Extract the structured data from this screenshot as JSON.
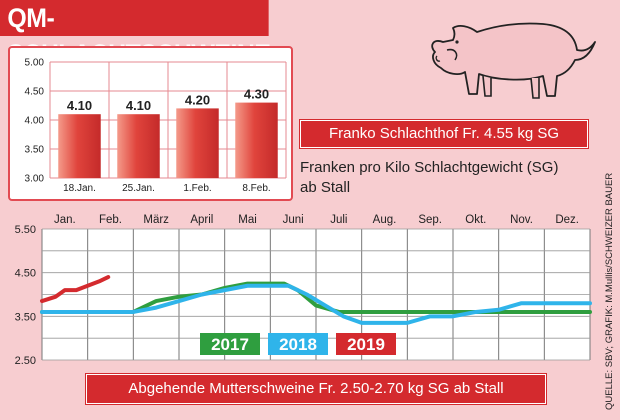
{
  "title": "QM-SCHLACHTSCHWEINE",
  "franko_label": "Franko Schlachthof Fr. 4.55 kg SG",
  "subtitle_line1": "Franken pro Kilo Schlachtgewicht (SG)",
  "subtitle_line2": "ab Stall",
  "mutter_label": "Abgehende Mutterschweine Fr. 2.50-2.70 kg SG ab Stall",
  "credit": "QUELLE: SBV; GRAFIK: M.Mullis/SCHWEIZER BAUER",
  "colors": {
    "red": "#d42a2e",
    "green": "#2f9e3f",
    "blue": "#2fb4ea",
    "pink": "#f7cdd0"
  },
  "chart_data": [
    {
      "type": "bar",
      "categories": [
        "18.Jan.",
        "25.Jan.",
        "1.Feb.",
        "8.Feb."
      ],
      "values": [
        4.1,
        4.1,
        4.2,
        4.3
      ],
      "value_labels": [
        "4.10",
        "4.10",
        "4.20",
        "4.30"
      ],
      "y_ticks": [
        "5.00",
        "4.50",
        "4.00",
        "3.50",
        "3.00"
      ],
      "ylim": [
        3.0,
        5.0
      ],
      "grid": true
    },
    {
      "type": "line",
      "categories": [
        "Jan.",
        "Feb.",
        "März",
        "April",
        "Mai",
        "Juni",
        "Juli",
        "Aug.",
        "Sep.",
        "Okt.",
        "Nov.",
        "Dez."
      ],
      "y_ticks": [
        "5.50",
        "4.50",
        "3.50",
        "2.50"
      ],
      "ylim": [
        2.5,
        5.5
      ],
      "grid": true,
      "series": [
        {
          "name": "2017",
          "color": "#2f9e3f",
          "x": [
            0,
            1,
            2,
            2.5,
            3,
            3.5,
            4,
            4.5,
            5,
            5.3,
            5.6,
            6,
            6.5,
            7,
            8,
            9,
            10,
            11,
            12
          ],
          "values": [
            3.6,
            3.6,
            3.6,
            3.85,
            3.95,
            4.0,
            4.15,
            4.25,
            4.25,
            4.25,
            4.1,
            3.75,
            3.6,
            3.6,
            3.6,
            3.6,
            3.6,
            3.6,
            3.6
          ]
        },
        {
          "name": "2018",
          "color": "#2fb4ea",
          "x": [
            0,
            1,
            2,
            2.5,
            3,
            3.5,
            4,
            4.5,
            5,
            5.4,
            5.8,
            6.2,
            6.6,
            7,
            7.5,
            8,
            8.5,
            9,
            9.5,
            10,
            10.5,
            11,
            12
          ],
          "values": [
            3.6,
            3.6,
            3.6,
            3.7,
            3.85,
            4.0,
            4.1,
            4.2,
            4.2,
            4.2,
            4.0,
            3.75,
            3.5,
            3.35,
            3.35,
            3.35,
            3.5,
            3.5,
            3.6,
            3.65,
            3.8,
            3.8,
            3.8
          ]
        },
        {
          "name": "2019",
          "color": "#d42a2e",
          "x": [
            0,
            0.3,
            0.5,
            0.75,
            1.0,
            1.25,
            1.45
          ],
          "values": [
            3.85,
            3.95,
            4.1,
            4.1,
            4.2,
            4.3,
            4.4
          ]
        }
      ]
    }
  ]
}
